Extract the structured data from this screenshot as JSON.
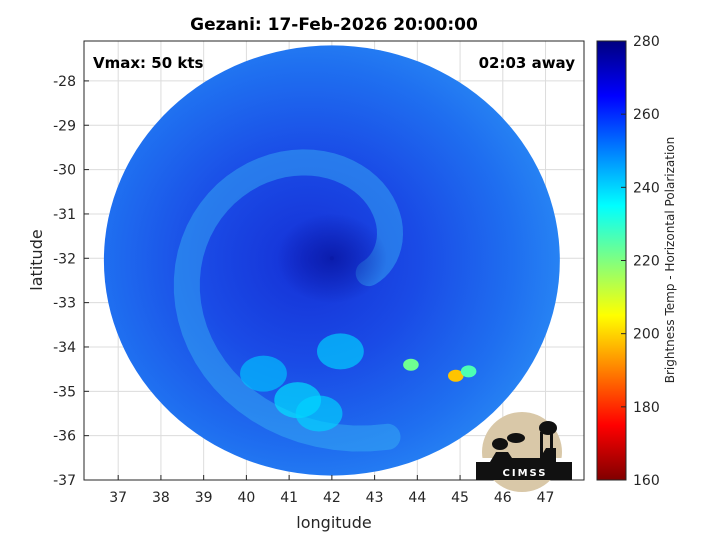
{
  "chart_data": {
    "type": "heatmap",
    "title": "Gezani: 17-Feb-2026 20:00:00",
    "annotations": {
      "vmax": "Vmax: 50 kts",
      "time_away": "02:03 away"
    },
    "xlabel": "longitude",
    "ylabel": "latitude",
    "xlim": [
      36.2,
      47.9
    ],
    "ylim": [
      -37,
      -27.1
    ],
    "x_ticks": [
      37,
      38,
      39,
      40,
      41,
      42,
      43,
      44,
      45,
      46,
      47
    ],
    "y_ticks": [
      -28,
      -29,
      -30,
      -31,
      -32,
      -33,
      -34,
      -35,
      -36,
      -37
    ],
    "grid": true,
    "colorbar": {
      "label": "Brightness Temp - Horizontal Polarization",
      "range": [
        160,
        280
      ],
      "ticks": [
        280,
        260,
        240,
        220,
        200,
        180,
        160
      ],
      "colors": [
        "#800000",
        "#ff0000",
        "#ff8000",
        "#ffff00",
        "#80ff80",
        "#00ffff",
        "#0080ff",
        "#0000ff",
        "#000080"
      ]
    },
    "swath": {
      "center": [
        42.0,
        -32.05
      ],
      "radius_lat": 4.85
    },
    "storm_center": [
      42.0,
      -32.0
    ],
    "background_tb": 258,
    "features": [
      {
        "name": "cold-spot-1",
        "lon": 44.9,
        "lat": -34.65,
        "tb": 198
      },
      {
        "name": "cold-spot-2",
        "lon": 43.85,
        "lat": -34.4,
        "tb": 222
      },
      {
        "name": "cold-spot-3",
        "lon": 45.2,
        "lat": -34.55,
        "tb": 226
      },
      {
        "name": "rainband-1",
        "lon": 41.2,
        "lat": -35.2,
        "tb": 238
      },
      {
        "name": "rainband-2",
        "lon": 42.2,
        "lat": -34.1,
        "tb": 240
      },
      {
        "name": "rainband-3",
        "lon": 40.4,
        "lat": -34.6,
        "tb": 242
      },
      {
        "name": "rainband-4",
        "lon": 41.7,
        "lat": -35.5,
        "tb": 240
      }
    ],
    "logo_text": "CIMSS"
  }
}
